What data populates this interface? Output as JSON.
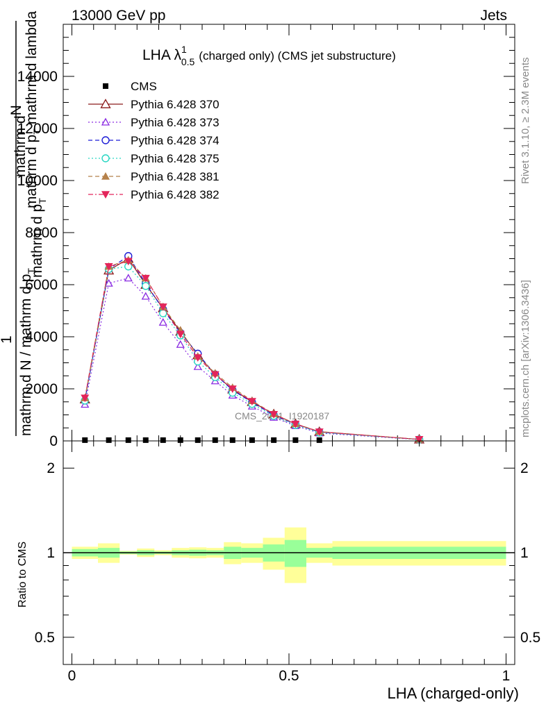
{
  "header": {
    "left": "13000 GeV pp",
    "right": "Jets"
  },
  "side": {
    "rivet": "Rivet 3.1.10, ≥ 2.3M events",
    "mcplots": "mcplots.cern.ch [arXiv:1306.3436]"
  },
  "main": {
    "title_main": "LHA λ",
    "title_sup": "1",
    "title_sub": "0.5",
    "title_rest": "(charged only) (CMS jet substructure)",
    "watermark": "CMS_2021_I1920187",
    "ylabel_top_a": "mathrm d",
    "ylabel_top_b": "N",
    "ylabel_top_c": "mathrm d p",
    "ylabel_top_d": "T",
    "ylabel_top_e": "mathrm d lambda",
    "ylabel_one": "1",
    "ylabel_bottom_a": "mathrm d N / mathrm d p",
    "ylabel_bottom_b": "T",
    "ylabel_bottom_c": "mathrm d p",
    "ylabel_bottom_d": "T",
    "yticks": [
      "0",
      "2000",
      "4000",
      "6000",
      "8000",
      "10000",
      "12000",
      "14000"
    ]
  },
  "ratio": {
    "ylabel": "Ratio to CMS",
    "yticks": [
      "0.5",
      "1",
      "2"
    ]
  },
  "xaxis": {
    "label": "LHA (charged-only)",
    "ticks": [
      "0",
      "0.5",
      "1"
    ]
  },
  "legend": [
    {
      "label": "CMS",
      "color": "#000000",
      "marker": "square-filled",
      "dash": "none"
    },
    {
      "label": "Pythia 6.428 370",
      "color": "#8b1a1a",
      "marker": "triangle-open",
      "dash": "solid"
    },
    {
      "label": "Pythia 6.428 373",
      "color": "#8a2be2",
      "marker": "triangle-open-small",
      "dash": "dotted"
    },
    {
      "label": "Pythia 6.428 374",
      "color": "#1c1cd6",
      "marker": "circle-open",
      "dash": "dashed"
    },
    {
      "label": "Pythia 6.428 375",
      "color": "#27d6c2",
      "marker": "circle-open",
      "dash": "dotted"
    },
    {
      "label": "Pythia 6.428 381",
      "color": "#b5814a",
      "marker": "triangle-filled",
      "dash": "dashed"
    },
    {
      "label": "Pythia 6.428 382",
      "color": "#e3255a",
      "marker": "triangle-down-filled",
      "dash": "dashdot"
    }
  ],
  "chart_data": {
    "type": "line",
    "x": [
      0.03,
      0.085,
      0.13,
      0.17,
      0.21,
      0.25,
      0.29,
      0.33,
      0.37,
      0.415,
      0.465,
      0.515,
      0.57,
      0.8
    ],
    "xlim": [
      -0.02,
      1.02
    ],
    "ylim": [
      0,
      16000
    ],
    "ratio_ylim_log": [
      0.4,
      2.5
    ],
    "cms": {
      "name": "CMS",
      "x": [
        0.03,
        0.085,
        0.13,
        0.17,
        0.21,
        0.25,
        0.29,
        0.33,
        0.37,
        0.415,
        0.465,
        0.515,
        0.57
      ],
      "values": [
        30,
        30,
        30,
        30,
        30,
        30,
        30,
        30,
        30,
        30,
        30,
        30,
        30
      ]
    },
    "series": [
      {
        "name": "Pythia 6.428 370",
        "values": [
          1600,
          6550,
          7000,
          6000,
          5100,
          4200,
          3300,
          2550,
          1980,
          1500,
          1030,
          650,
          350,
          60
        ]
      },
      {
        "name": "Pythia 6.428 373",
        "values": [
          1400,
          6050,
          6250,
          5550,
          4550,
          3700,
          2850,
          2300,
          1750,
          1330,
          900,
          580,
          300,
          50
        ]
      },
      {
        "name": "Pythia 6.428 374",
        "values": [
          1550,
          6600,
          7100,
          6050,
          5050,
          4150,
          3350,
          2550,
          1950,
          1480,
          990,
          640,
          340,
          55
        ]
      },
      {
        "name": "Pythia 6.428 375",
        "values": [
          1550,
          6600,
          6700,
          5950,
          4900,
          4050,
          3050,
          2450,
          1850,
          1420,
          960,
          610,
          320,
          55
        ]
      },
      {
        "name": "Pythia 6.428 381",
        "values": [
          1650,
          6700,
          6950,
          6250,
          5150,
          4250,
          3250,
          2600,
          2050,
          1540,
          1040,
          660,
          360,
          60
        ]
      },
      {
        "name": "Pythia 6.428 382",
        "values": [
          1650,
          6700,
          6900,
          6250,
          5150,
          4100,
          3200,
          2550,
          2000,
          1520,
          1020,
          650,
          350,
          60
        ]
      }
    ],
    "ratio_bands": [
      {
        "x0": 0.0,
        "x1": 0.06,
        "green": [
          0.97,
          1.03
        ],
        "yellow": [
          0.95,
          1.05
        ]
      },
      {
        "x0": 0.06,
        "x1": 0.11,
        "green": [
          0.96,
          1.04
        ],
        "yellow": [
          0.92,
          1.08
        ]
      },
      {
        "x0": 0.11,
        "x1": 0.15,
        "green": [
          0.99,
          1.01
        ],
        "yellow": [
          0.985,
          1.015
        ]
      },
      {
        "x0": 0.15,
        "x1": 0.19,
        "green": [
          0.98,
          1.02
        ],
        "yellow": [
          0.965,
          1.035
        ]
      },
      {
        "x0": 0.19,
        "x1": 0.23,
        "green": [
          0.99,
          1.01
        ],
        "yellow": [
          0.98,
          1.02
        ]
      },
      {
        "x0": 0.23,
        "x1": 0.27,
        "green": [
          0.98,
          1.02
        ],
        "yellow": [
          0.96,
          1.04
        ]
      },
      {
        "x0": 0.27,
        "x1": 0.31,
        "green": [
          0.975,
          1.025
        ],
        "yellow": [
          0.955,
          1.045
        ]
      },
      {
        "x0": 0.31,
        "x1": 0.35,
        "green": [
          0.98,
          1.02
        ],
        "yellow": [
          0.96,
          1.04
        ]
      },
      {
        "x0": 0.35,
        "x1": 0.39,
        "green": [
          0.95,
          1.05
        ],
        "yellow": [
          0.91,
          1.09
        ]
      },
      {
        "x0": 0.39,
        "x1": 0.44,
        "green": [
          0.96,
          1.04
        ],
        "yellow": [
          0.92,
          1.08
        ]
      },
      {
        "x0": 0.44,
        "x1": 0.49,
        "green": [
          0.93,
          1.07
        ],
        "yellow": [
          0.87,
          1.13
        ]
      },
      {
        "x0": 0.49,
        "x1": 0.54,
        "green": [
          0.89,
          1.11
        ],
        "yellow": [
          0.78,
          1.23
        ]
      },
      {
        "x0": 0.54,
        "x1": 0.6,
        "green": [
          0.96,
          1.04
        ],
        "yellow": [
          0.92,
          1.08
        ]
      },
      {
        "x0": 0.6,
        "x1": 1.0,
        "green": [
          0.95,
          1.05
        ],
        "yellow": [
          0.9,
          1.1
        ]
      }
    ]
  }
}
